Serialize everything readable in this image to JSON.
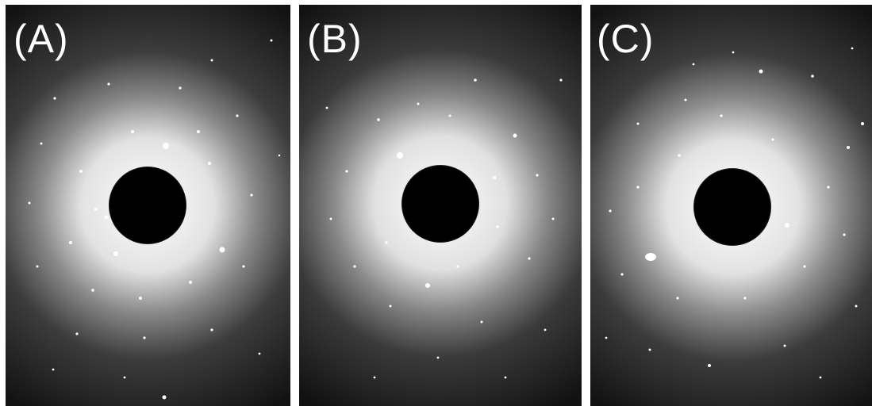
{
  "figure": {
    "panels": [
      {
        "id": "a",
        "label": "(A)"
      },
      {
        "id": "b",
        "label": "(B)"
      },
      {
        "id": "c",
        "label": "(C)"
      }
    ]
  }
}
